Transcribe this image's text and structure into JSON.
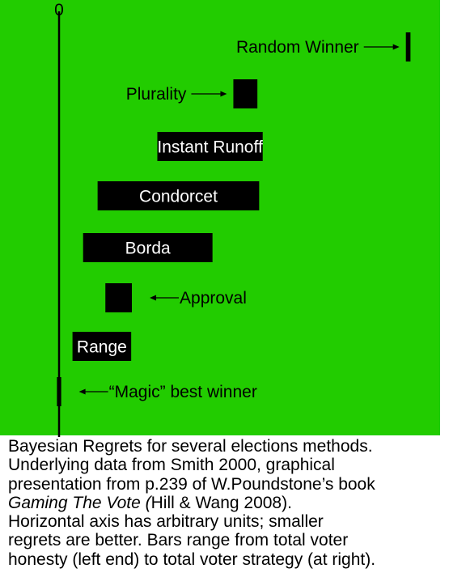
{
  "chart_data": {
    "type": "bar",
    "orientation": "horizontal-range",
    "zero_label": "0",
    "background_color": "#22cc00",
    "bar_color": "#000000",
    "xlim": [
      0,
      100
    ],
    "methods": [
      {
        "name": "Random Winner",
        "honest": 98.1,
        "strategic": 99.4,
        "label_position": "left-arrow"
      },
      {
        "name": "Plurality",
        "honest": 49.3,
        "strategic": 56.1,
        "label_position": "left-arrow"
      },
      {
        "name": "Instant Runoff",
        "honest": 27.8,
        "strategic": 57.6,
        "label_position": "inside"
      },
      {
        "name": "Condorcet",
        "honest": 10.9,
        "strategic": 56.6,
        "label_position": "inside"
      },
      {
        "name": "Borda",
        "honest": 6.8,
        "strategic": 43.4,
        "label_position": "inside"
      },
      {
        "name": "Approval",
        "honest": 13.1,
        "strategic": 20.6,
        "label_position": "right-arrow"
      },
      {
        "name": "Range",
        "honest": 3.8,
        "strategic": 20.4,
        "label_position": "inside"
      },
      {
        "name": "“Magic” best winner",
        "honest": -0.6,
        "strategic": 0.6,
        "label_position": "right-arrow"
      }
    ]
  },
  "caption": {
    "line1": "Bayesian Regrets for several elections methods.",
    "line2": "Underlying data from Smith 2000, graphical",
    "line3": "presentation from p.239 of W.Poundstone’s book",
    "line4_italic": "Gaming The Vote (",
    "line4_rest": "Hill & Wang 2008).",
    "line5": "Horizontal axis has arbitrary units; smaller",
    "line6": "regrets are better.  Bars range from total voter",
    "line7": "honesty (left end) to total voter strategy (at right)."
  }
}
